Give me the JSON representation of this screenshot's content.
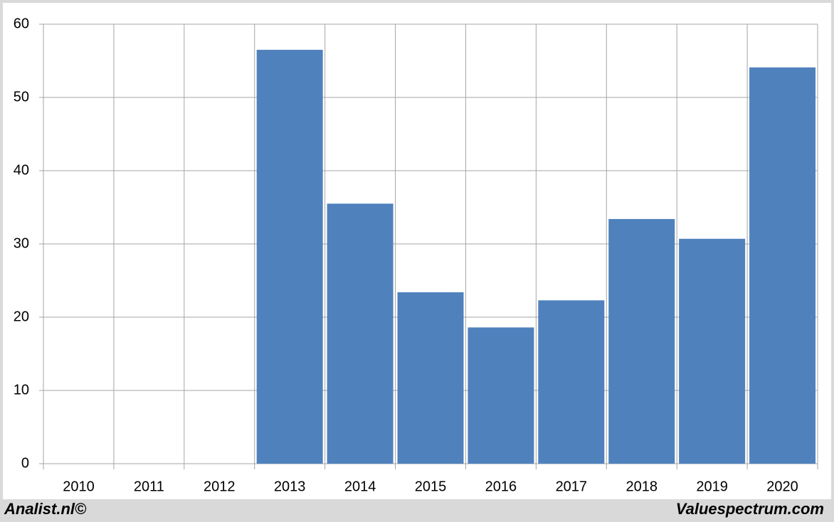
{
  "chart_data": {
    "type": "bar",
    "categories": [
      "2010",
      "2011",
      "2012",
      "2013",
      "2014",
      "2015",
      "2016",
      "2017",
      "2018",
      "2019",
      "2020"
    ],
    "values": [
      null,
      null,
      null,
      56.5,
      35.5,
      23.4,
      18.6,
      22.3,
      33.4,
      30.7,
      54.1
    ],
    "color": "#4f81bd",
    "ylim": [
      0,
      60
    ],
    "yticks": [
      0,
      10,
      20,
      30,
      40,
      50,
      60
    ],
    "grid": true,
    "annotations": [
      "Analist.nl©",
      "Valuespectrum.com"
    ]
  }
}
